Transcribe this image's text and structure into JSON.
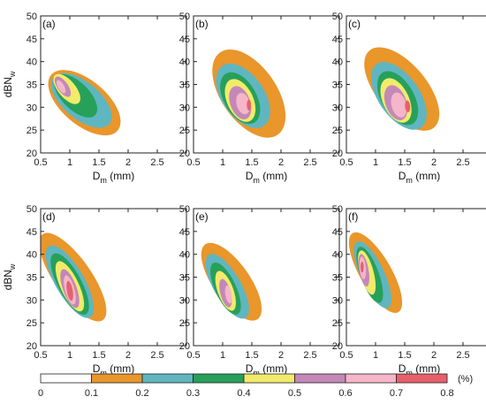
{
  "chart_data": {
    "type": "contour",
    "shared": {
      "xlabel": "D",
      "xlabel_sub": "m",
      "xlabel_unit": "(mm)",
      "ylabel": "dBN",
      "ylabel_sub": "w",
      "xlim": [
        0.5,
        3.0
      ],
      "ylim": [
        20,
        50
      ],
      "xticks": [
        0.5,
        1,
        1.5,
        2,
        2.5
      ],
      "yticks": [
        20,
        25,
        30,
        35,
        40,
        45,
        50
      ]
    },
    "colorbar": {
      "levels": [
        0,
        0.1,
        0.2,
        0.3,
        0.4,
        0.5,
        0.6,
        0.7,
        0.8
      ],
      "tick_labels": [
        "0",
        "0.1",
        "0.2",
        "0.3",
        "0.4",
        "0.5",
        "0.6",
        "0.7",
        "0.8"
      ],
      "unit": "(%)",
      "colors": [
        "#ffffff",
        "#e9962b",
        "#5fb6c0",
        "#27a05a",
        "#f2eb6a",
        "#c488b8",
        "#f4b6c8",
        "#e8606c"
      ]
    },
    "panels": [
      {
        "label": "(a)",
        "blobs": [
          {
            "level": 1,
            "cx": 1.25,
            "cy": 31,
            "rx": 0.85,
            "ry": 9.5,
            "rot": 50
          },
          {
            "level": 2,
            "cx": 1.2,
            "cy": 31.5,
            "rx": 0.7,
            "ry": 8,
            "rot": 50
          },
          {
            "level": 3,
            "cx": 1.1,
            "cy": 32.5,
            "rx": 0.52,
            "ry": 6,
            "rot": 45
          },
          {
            "level": 4,
            "cx": 0.95,
            "cy": 34,
            "rx": 0.33,
            "ry": 4,
            "rot": 40
          },
          {
            "level": 5,
            "cx": 0.88,
            "cy": 34.5,
            "rx": 0.2,
            "ry": 2.6,
            "rot": 35
          },
          {
            "level": 6,
            "cx": 0.85,
            "cy": 34.5,
            "rx": 0.12,
            "ry": 1.6,
            "rot": 30
          }
        ]
      },
      {
        "label": "(b)",
        "blobs": [
          {
            "level": 1,
            "cx": 1.45,
            "cy": 33,
            "rx": 1.05,
            "ry": 11,
            "rot": 35
          },
          {
            "level": 2,
            "cx": 1.35,
            "cy": 32.5,
            "rx": 0.8,
            "ry": 8,
            "rot": 35
          },
          {
            "level": 3,
            "cx": 1.3,
            "cy": 32,
            "rx": 0.62,
            "ry": 6.2,
            "rot": 30
          },
          {
            "level": 4,
            "cx": 1.3,
            "cy": 31.5,
            "rx": 0.5,
            "ry": 5,
            "rot": 25
          },
          {
            "level": 5,
            "cx": 1.3,
            "cy": 31,
            "rx": 0.38,
            "ry": 3.8,
            "rot": 20
          },
          {
            "level": 6,
            "cx": 1.35,
            "cy": 30.8,
            "rx": 0.25,
            "ry": 2.4,
            "rot": 15
          },
          {
            "level": 7,
            "cx": 1.45,
            "cy": 30.5,
            "rx": 0.08,
            "ry": 1.2,
            "rot": 0
          }
        ]
      },
      {
        "label": "(c)",
        "blobs": [
          {
            "level": 1,
            "cx": 1.45,
            "cy": 34,
            "rx": 0.95,
            "ry": 11,
            "rot": 40
          },
          {
            "level": 2,
            "cx": 1.4,
            "cy": 32.5,
            "rx": 0.78,
            "ry": 8.5,
            "rot": 35
          },
          {
            "level": 3,
            "cx": 1.38,
            "cy": 32,
            "rx": 0.62,
            "ry": 6.5,
            "rot": 30
          },
          {
            "level": 4,
            "cx": 1.35,
            "cy": 31.5,
            "rx": 0.5,
            "ry": 5.2,
            "rot": 25
          },
          {
            "level": 5,
            "cx": 1.35,
            "cy": 31,
            "rx": 0.4,
            "ry": 4,
            "rot": 20
          },
          {
            "level": 6,
            "cx": 1.4,
            "cy": 30.5,
            "rx": 0.28,
            "ry": 2.8,
            "rot": 15
          },
          {
            "level": 7,
            "cx": 1.55,
            "cy": 30.2,
            "rx": 0.1,
            "ry": 1.3,
            "rot": 5
          }
        ]
      },
      {
        "label": "(d)",
        "blobs": [
          {
            "level": 1,
            "cx": 1.05,
            "cy": 35,
            "rx": 0.7,
            "ry": 11.5,
            "rot": 35
          },
          {
            "level": 2,
            "cx": 1.0,
            "cy": 34,
            "rx": 0.55,
            "ry": 9,
            "rot": 30
          },
          {
            "level": 3,
            "cx": 1.0,
            "cy": 33.5,
            "rx": 0.45,
            "ry": 7.5,
            "rot": 28
          },
          {
            "level": 4,
            "cx": 1.0,
            "cy": 33,
            "rx": 0.35,
            "ry": 6,
            "rot": 25
          },
          {
            "level": 5,
            "cx": 1.0,
            "cy": 32.5,
            "rx": 0.26,
            "ry": 4.5,
            "rot": 20
          },
          {
            "level": 6,
            "cx": 1.0,
            "cy": 32.2,
            "rx": 0.18,
            "ry": 3.3,
            "rot": 15
          },
          {
            "level": 7,
            "cx": 1.0,
            "cy": 32,
            "rx": 0.11,
            "ry": 2.2,
            "rot": 10
          }
        ]
      },
      {
        "label": "(e)",
        "blobs": [
          {
            "level": 1,
            "cx": 1.15,
            "cy": 34,
            "rx": 0.7,
            "ry": 10,
            "rot": 35
          },
          {
            "level": 2,
            "cx": 1.08,
            "cy": 33,
            "rx": 0.52,
            "ry": 8,
            "rot": 30
          },
          {
            "level": 3,
            "cx": 1.05,
            "cy": 32.5,
            "rx": 0.4,
            "ry": 6.2,
            "rot": 25
          },
          {
            "level": 4,
            "cx": 1.05,
            "cy": 32,
            "rx": 0.3,
            "ry": 4.6,
            "rot": 20
          },
          {
            "level": 5,
            "cx": 1.05,
            "cy": 31.5,
            "rx": 0.2,
            "ry": 3.2,
            "rot": 15
          },
          {
            "level": 6,
            "cx": 1.1,
            "cy": 31.2,
            "rx": 0.12,
            "ry": 2,
            "rot": 10
          }
        ]
      },
      {
        "label": "(f)",
        "blobs": [
          {
            "level": 1,
            "cx": 1.0,
            "cy": 36,
            "rx": 0.6,
            "ry": 10,
            "rot": 30
          },
          {
            "level": 2,
            "cx": 0.95,
            "cy": 35.5,
            "rx": 0.45,
            "ry": 8,
            "rot": 25
          },
          {
            "level": 3,
            "cx": 0.9,
            "cy": 35.5,
            "rx": 0.35,
            "ry": 6.5,
            "rot": 20
          },
          {
            "level": 4,
            "cx": 0.85,
            "cy": 36,
            "rx": 0.26,
            "ry": 5,
            "rot": 15
          },
          {
            "level": 5,
            "cx": 0.8,
            "cy": 36.5,
            "rx": 0.18,
            "ry": 3.6,
            "rot": 10
          },
          {
            "level": 6,
            "cx": 0.78,
            "cy": 37,
            "rx": 0.12,
            "ry": 2.5,
            "rot": 5
          },
          {
            "level": 7,
            "cx": 0.77,
            "cy": 37.2,
            "rx": 0.06,
            "ry": 1.2,
            "rot": 0
          }
        ]
      }
    ]
  }
}
